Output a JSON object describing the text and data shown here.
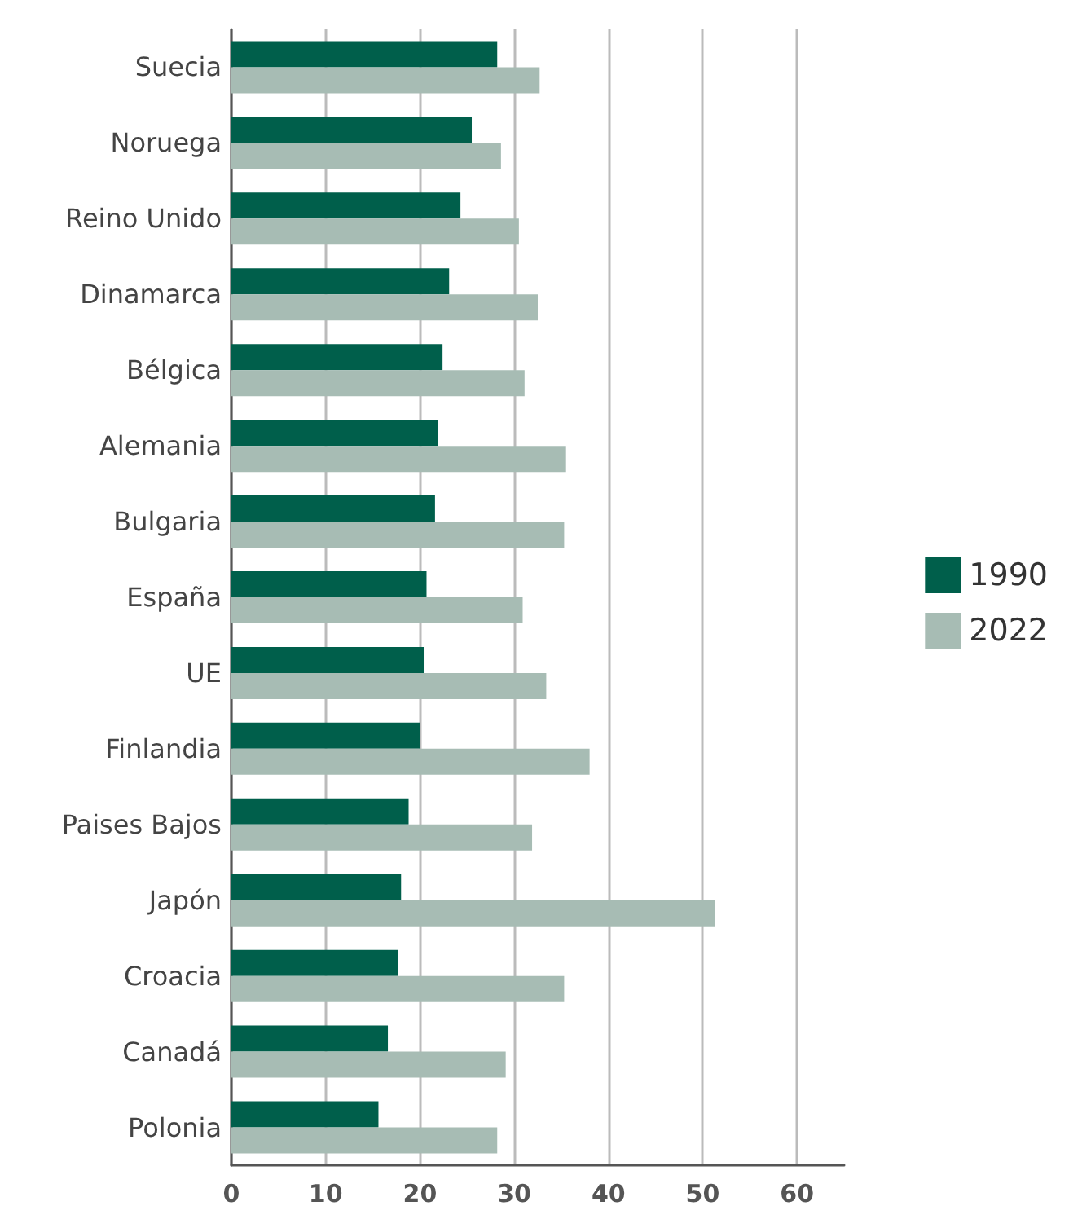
{
  "chart_data": {
    "type": "bar",
    "orientation": "horizontal",
    "categories": [
      "Suecia",
      "Noruega",
      "Reino Unido",
      "Dinamarca",
      "Bélgica",
      "Alemania",
      "Bulgaria",
      "España",
      "UE",
      "Finlandia",
      "Paises Bajos",
      "Japón",
      "Croacia",
      "Canadá",
      "Polonia"
    ],
    "series": [
      {
        "name": "1990",
        "color": "#005f4b",
        "values": [
          28.2,
          25.5,
          24.3,
          23.1,
          22.4,
          21.9,
          21.6,
          20.7,
          20.4,
          20.0,
          18.8,
          18.0,
          17.7,
          16.6,
          15.6
        ]
      },
      {
        "name": "2022",
        "color": "#a7bcb4",
        "values": [
          32.7,
          28.6,
          30.5,
          32.5,
          31.1,
          35.5,
          35.3,
          30.9,
          33.4,
          38.0,
          31.9,
          51.3,
          35.3,
          29.1,
          28.2
        ]
      }
    ],
    "xlim": [
      0,
      65
    ],
    "xticks": [
      0,
      10,
      20,
      30,
      40,
      50,
      60
    ],
    "grid": "x",
    "legend": "right"
  }
}
